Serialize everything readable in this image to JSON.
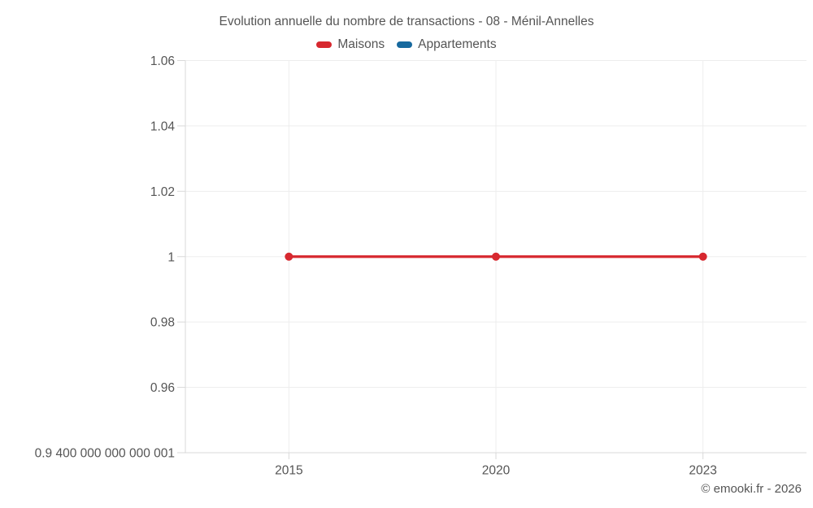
{
  "chart_data": {
    "type": "line",
    "title": "Evolution annuelle du nombre de transactions - 08 - Ménil-Annelles",
    "categories": [
      "2015",
      "2020",
      "2023"
    ],
    "series": [
      {
        "name": "Maisons",
        "color": "#d7282f",
        "values": [
          1,
          1,
          1
        ]
      },
      {
        "name": "Appartements",
        "color": "#17699e",
        "values": []
      }
    ],
    "xlabel": "",
    "ylabel": "",
    "ylim": [
      0.94,
      1.06
    ],
    "y_ticks": [
      {
        "value": 1.06,
        "label": "1.06"
      },
      {
        "value": 1.04,
        "label": "1.04"
      },
      {
        "value": 1.02,
        "label": "1.02"
      },
      {
        "value": 1.0,
        "label": "1"
      },
      {
        "value": 0.98,
        "label": "0.98"
      },
      {
        "value": 0.96,
        "label": "0.96"
      },
      {
        "value": 0.94,
        "label": "0.9 400 000 000 000 001"
      }
    ],
    "grid": true,
    "legend_position": "top",
    "text_color": "#555555",
    "grid_color": "#ededed",
    "axis_color": "#d9d9d9",
    "copyright": "© emooki.fr - 2026"
  }
}
